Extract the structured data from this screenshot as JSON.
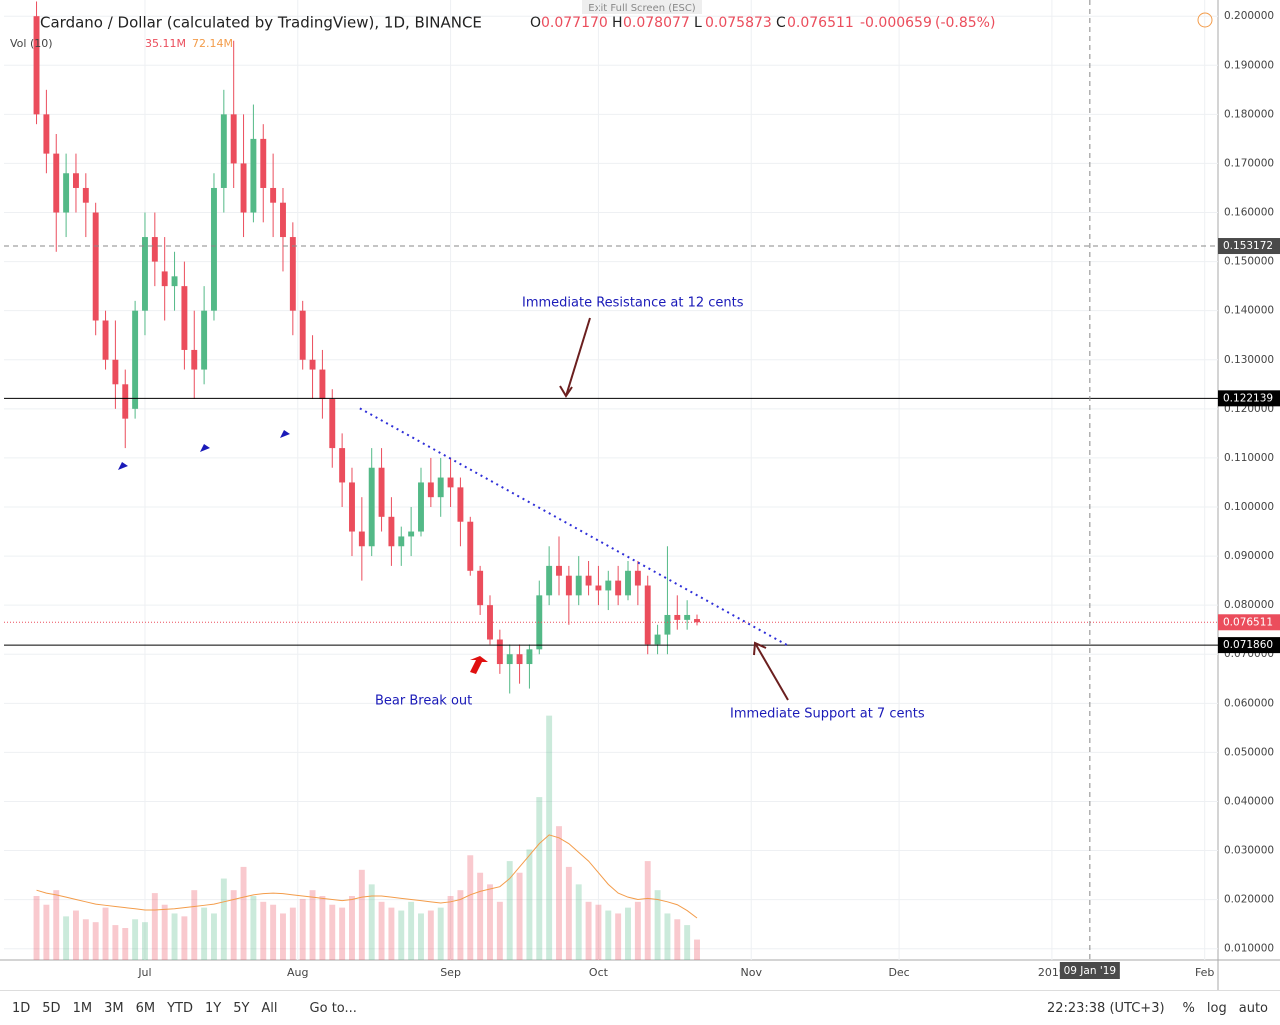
{
  "toolbar": {
    "exit": "Exit Full Screen (ESC)",
    "ranges": [
      "1D",
      "5D",
      "1M",
      "3M",
      "6M",
      "YTD",
      "1Y",
      "5Y",
      "All"
    ],
    "goto": "Go to...",
    "time": "22:23:38 (UTC+3)",
    "options": [
      "%",
      "log",
      "auto"
    ]
  },
  "chart_data": {
    "type": "candlestick",
    "title": "Cardano / Dollar (calculated by TradingView), 1D, BINANCE",
    "legend_ohlc": [
      {
        "label": "O",
        "value_label": "0.077170"
      },
      {
        "label": "H",
        "value_label": "0.078077"
      },
      {
        "label": "L",
        "value_label": "0.075873"
      },
      {
        "label": "C",
        "value_label": "0.076511"
      }
    ],
    "change": -0.000659,
    "change_pct": {
      "value": -0.85,
      "label": "(-0.85%)"
    },
    "volume_title": "Vol (10)",
    "volume_labels": [
      "35.11M",
      "72.14M"
    ],
    "up_color": "#53b987",
    "down_color": "#eb4d5c",
    "ma_color": "#f39c4a",
    "trend_color": "#2f2fd8",
    "x": [
      8,
      10,
      12,
      14,
      16,
      18,
      20,
      22,
      24,
      26,
      28,
      30,
      32,
      34,
      36,
      38,
      40,
      42,
      44,
      46,
      48,
      50,
      52,
      54,
      56,
      58,
      60,
      62,
      64,
      66,
      68,
      70,
      72,
      74,
      76,
      78,
      80,
      82,
      84,
      86,
      88,
      90,
      92,
      94,
      96,
      98,
      100,
      102,
      104,
      106,
      108,
      110,
      112,
      114,
      116,
      118,
      120,
      122,
      124,
      126,
      128,
      130,
      132,
      134,
      136,
      138,
      140,
      142
    ],
    "open": [
      0.2,
      0.18,
      0.172,
      0.16,
      0.168,
      0.165,
      0.16,
      0.138,
      0.13,
      0.125,
      0.12,
      0.14,
      0.155,
      0.148,
      0.145,
      0.145,
      0.132,
      0.128,
      0.14,
      0.165,
      0.18,
      0.17,
      0.16,
      0.175,
      0.165,
      0.162,
      0.155,
      0.14,
      0.13,
      0.128,
      0.122,
      0.112,
      0.105,
      0.095,
      0.092,
      0.108,
      0.098,
      0.092,
      0.094,
      0.095,
      0.105,
      0.102,
      0.106,
      0.104,
      0.097,
      0.087,
      0.08,
      0.073,
      0.068,
      0.07,
      0.068,
      0.071,
      0.082,
      0.088,
      0.086,
      0.082,
      0.086,
      0.084,
      0.083,
      0.085,
      0.082,
      0.087,
      0.084,
      0.072,
      0.074,
      0.078,
      0.077,
      0.07717
    ],
    "high": [
      0.203,
      0.185,
      0.176,
      0.172,
      0.172,
      0.168,
      0.162,
      0.14,
      0.138,
      0.128,
      0.142,
      0.16,
      0.16,
      0.155,
      0.152,
      0.15,
      0.14,
      0.145,
      0.168,
      0.185,
      0.195,
      0.18,
      0.182,
      0.178,
      0.172,
      0.165,
      0.158,
      0.142,
      0.135,
      0.132,
      0.124,
      0.115,
      0.108,
      0.102,
      0.112,
      0.112,
      0.102,
      0.096,
      0.1,
      0.108,
      0.11,
      0.11,
      0.11,
      0.106,
      0.098,
      0.088,
      0.082,
      0.075,
      0.072,
      0.072,
      0.072,
      0.085,
      0.092,
      0.094,
      0.088,
      0.09,
      0.089,
      0.088,
      0.087,
      0.088,
      0.089,
      0.089,
      0.086,
      0.076,
      0.092,
      0.082,
      0.081,
      0.078077
    ],
    "low": [
      0.178,
      0.168,
      0.152,
      0.155,
      0.16,
      0.155,
      0.135,
      0.128,
      0.12,
      0.112,
      0.118,
      0.135,
      0.145,
      0.138,
      0.14,
      0.128,
      0.122,
      0.125,
      0.138,
      0.16,
      0.165,
      0.155,
      0.158,
      0.158,
      0.155,
      0.148,
      0.135,
      0.128,
      0.122,
      0.118,
      0.108,
      0.1,
      0.09,
      0.085,
      0.09,
      0.095,
      0.088,
      0.088,
      0.09,
      0.094,
      0.1,
      0.098,
      0.1,
      0.092,
      0.086,
      0.078,
      0.072,
      0.066,
      0.062,
      0.064,
      0.063,
      0.07,
      0.08,
      0.082,
      0.076,
      0.08,
      0.082,
      0.08,
      0.079,
      0.08,
      0.081,
      0.08,
      0.07,
      0.07,
      0.07,
      0.075,
      0.075,
      0.075873
    ],
    "close": [
      0.18,
      0.172,
      0.16,
      0.168,
      0.165,
      0.162,
      0.138,
      0.13,
      0.125,
      0.118,
      0.14,
      0.155,
      0.15,
      0.145,
      0.147,
      0.132,
      0.128,
      0.14,
      0.165,
      0.18,
      0.17,
      0.16,
      0.175,
      0.165,
      0.162,
      0.155,
      0.14,
      0.13,
      0.128,
      0.122,
      0.112,
      0.105,
      0.095,
      0.092,
      0.108,
      0.098,
      0.092,
      0.094,
      0.095,
      0.105,
      0.102,
      0.106,
      0.104,
      0.097,
      0.087,
      0.08,
      0.073,
      0.068,
      0.07,
      0.068,
      0.071,
      0.082,
      0.088,
      0.086,
      0.082,
      0.086,
      0.084,
      0.083,
      0.085,
      0.082,
      0.087,
      0.084,
      0.072,
      0.074,
      0.078,
      0.077,
      0.078,
      0.076511
    ],
    "volume": [
      110,
      95,
      120,
      75,
      85,
      70,
      65,
      90,
      60,
      55,
      70,
      65,
      115,
      95,
      80,
      75,
      120,
      90,
      80,
      140,
      120,
      160,
      110,
      100,
      95,
      80,
      90,
      105,
      120,
      110,
      95,
      90,
      110,
      155,
      130,
      100,
      90,
      85,
      100,
      80,
      85,
      90,
      110,
      120,
      180,
      150,
      130,
      100,
      170,
      150,
      190,
      280,
      420,
      230,
      160,
      130,
      100,
      95,
      85,
      80,
      90,
      100,
      170,
      120,
      80,
      70,
      60,
      35.11
    ],
    "volume_ma": [
      120,
      115,
      112,
      108,
      104,
      100,
      96,
      94,
      92,
      90,
      88,
      86,
      86,
      87,
      88,
      90,
      92,
      94,
      96,
      100,
      104,
      108,
      112,
      114,
      115,
      114,
      112,
      110,
      108,
      106,
      104,
      102,
      104,
      108,
      110,
      110,
      108,
      106,
      104,
      102,
      100,
      98,
      100,
      104,
      112,
      118,
      122,
      126,
      140,
      160,
      180,
      200,
      215,
      210,
      200,
      185,
      170,
      150,
      130,
      115,
      108,
      104,
      106,
      104,
      100,
      95,
      85,
      72.14
    ],
    "vlim": [
      0,
      550
    ],
    "xlim": [
      1.4,
      247.7
    ],
    "xticks": [
      {
        "value": 30,
        "label": "Jul"
      },
      {
        "value": 61,
        "label": "Aug"
      },
      {
        "value": 92,
        "label": "Sep"
      },
      {
        "value": 122,
        "label": "Oct"
      },
      {
        "value": 153,
        "label": "Nov"
      },
      {
        "value": 183,
        "label": "Dec"
      },
      {
        "value": 214,
        "label": "2019"
      },
      {
        "value": 245,
        "label": "Feb"
      }
    ],
    "ylim": [
      0.0077,
      0.2033
    ],
    "yticks": [
      {
        "value": 0.01,
        "label": "0.010000"
      },
      {
        "value": 0.02,
        "label": "0.020000"
      },
      {
        "value": 0.03,
        "label": "0.030000"
      },
      {
        "value": 0.04,
        "label": "0.040000"
      },
      {
        "value": 0.05,
        "label": "0.050000"
      },
      {
        "value": 0.06,
        "label": "0.060000"
      },
      {
        "value": 0.07,
        "label": "0.070000"
      },
      {
        "value": 0.08,
        "label": "0.080000"
      },
      {
        "value": 0.09,
        "label": "0.090000"
      },
      {
        "value": 0.1,
        "label": "0.100000"
      },
      {
        "value": 0.11,
        "label": "0.110000"
      },
      {
        "value": 0.12,
        "label": "0.120000"
      },
      {
        "value": 0.13,
        "label": "0.130000"
      },
      {
        "value": 0.14,
        "label": "0.140000"
      },
      {
        "value": 0.15,
        "label": "0.150000"
      },
      {
        "value": 0.16,
        "label": "0.160000"
      },
      {
        "value": 0.17,
        "label": "0.170000"
      },
      {
        "value": 0.18,
        "label": "0.180000"
      },
      {
        "value": 0.19,
        "label": "0.190000"
      },
      {
        "value": 0.2,
        "label": "0.200000"
      }
    ],
    "grid": true,
    "levels": [
      {
        "value": 0.122139,
        "label": "0.122139"
      },
      {
        "value": 0.07186,
        "label": "0.071860"
      }
    ],
    "crosshair": {
      "price": 0.153172,
      "x": 221.7,
      "x_label": "09 Jan '19"
    },
    "trendline": {
      "x": [
        73.6,
        160.2
      ],
      "y": [
        0.1201,
        0.0719
      ]
    },
    "annotations": [
      "Immediate Resistance at 12 cents",
      "Bear Break out",
      "Immediate Support at 7 cents"
    ]
  }
}
